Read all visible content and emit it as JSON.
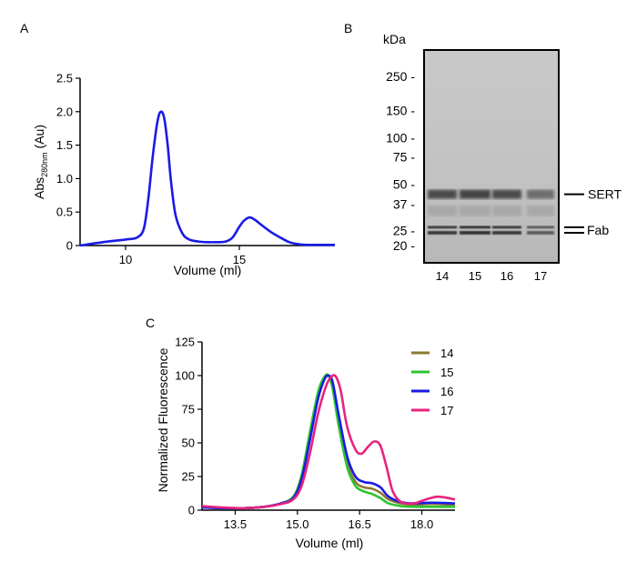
{
  "panel_labels": {
    "a": "A",
    "b": "B",
    "c": "C"
  },
  "chart_data": [
    {
      "id": "A",
      "type": "line",
      "title": "",
      "xlabel": "Volume (ml)",
      "ylabel_main": "Abs",
      "ylabel_sub": "280nm",
      "ylabel_unit": " (Au)",
      "xlim": [
        8,
        19.2
      ],
      "ylim": [
        0,
        2.5
      ],
      "xticks": [
        10,
        15
      ],
      "yticks": [
        0,
        0.5,
        1.0,
        1.5,
        2.0,
        2.5
      ],
      "ytick_labels": [
        "0",
        "0.5",
        "1.0",
        "1.5",
        "2.0",
        "2.5"
      ],
      "grid": false,
      "series": [
        {
          "name": "Abs280",
          "color": "#1a1ae6",
          "x": [
            8,
            9,
            10,
            10.5,
            10.8,
            11.0,
            11.2,
            11.4,
            11.55,
            11.7,
            11.85,
            12.0,
            12.2,
            12.5,
            12.8,
            13.2,
            13.6,
            14.0,
            14.4,
            14.7,
            15.0,
            15.2,
            15.45,
            15.7,
            16.0,
            16.4,
            16.8,
            17.2,
            17.6,
            18.0,
            19.2
          ],
          "values": [
            0.0,
            0.05,
            0.09,
            0.12,
            0.25,
            0.7,
            1.35,
            1.85,
            2.0,
            1.9,
            1.5,
            0.95,
            0.45,
            0.18,
            0.09,
            0.06,
            0.05,
            0.05,
            0.06,
            0.12,
            0.28,
            0.37,
            0.42,
            0.38,
            0.3,
            0.2,
            0.12,
            0.05,
            0.02,
            0.01,
            0.01
          ]
        }
      ]
    },
    {
      "id": "B",
      "type": "gel",
      "unit_label": "kDa",
      "markers": [
        {
          "label": "250",
          "kda": 250
        },
        {
          "label": "150",
          "kda": 150
        },
        {
          "label": "100",
          "kda": 100
        },
        {
          "label": "75",
          "kda": 75
        },
        {
          "label": "50",
          "kda": 50
        },
        {
          "label": "37",
          "kda": 37
        },
        {
          "label": "25",
          "kda": 25
        },
        {
          "label": "20",
          "kda": 20
        }
      ],
      "lanes": [
        "14",
        "15",
        "16",
        "17"
      ],
      "band_annotations": [
        {
          "label": "SERT",
          "kda": 43
        },
        {
          "label": "Fab",
          "kda": 25.5
        }
      ]
    },
    {
      "id": "C",
      "type": "line",
      "title": "",
      "xlabel": "Volume (ml)",
      "ylabel": "Normalized Fluorescence",
      "xlim": [
        12.7,
        18.8
      ],
      "ylim": [
        0,
        125
      ],
      "xticks": [
        13.5,
        15.0,
        16.5,
        18.0
      ],
      "xtick_labels": [
        "13.5",
        "15.0",
        "16.5",
        "18.0"
      ],
      "yticks": [
        0,
        25,
        50,
        75,
        100,
        125
      ],
      "grid": false,
      "legend_position": "top-right",
      "series": [
        {
          "name": "14",
          "color": "#8c7a33",
          "x": [
            12.7,
            13.2,
            13.7,
            14.2,
            14.6,
            14.9,
            15.1,
            15.3,
            15.5,
            15.65,
            15.75,
            15.85,
            16.0,
            16.2,
            16.4,
            16.6,
            16.8,
            17.0,
            17.2,
            17.5,
            17.8,
            18.1,
            18.4,
            18.8
          ],
          "values": [
            2,
            1.5,
            1.5,
            2.5,
            5,
            10,
            25,
            55,
            85,
            98,
            100,
            92,
            65,
            35,
            21,
            17,
            16,
            13,
            8,
            5,
            4,
            4.5,
            4.5,
            4
          ]
        },
        {
          "name": "15",
          "color": "#2ec42e",
          "x": [
            12.7,
            13.2,
            13.7,
            14.2,
            14.6,
            14.9,
            15.1,
            15.3,
            15.5,
            15.65,
            15.75,
            15.85,
            16.0,
            16.2,
            16.4,
            16.6,
            16.8,
            17.0,
            17.2,
            17.5,
            17.8,
            18.1,
            18.4,
            18.8
          ],
          "values": [
            2,
            1.5,
            1.5,
            2.5,
            5,
            10,
            26,
            58,
            88,
            99,
            100,
            90,
            62,
            32,
            18,
            14,
            12,
            9,
            5,
            3,
            2.5,
            2.5,
            2.5,
            2.5
          ]
        },
        {
          "name": "16",
          "color": "#1a1ae6",
          "x": [
            12.7,
            13.2,
            13.7,
            14.2,
            14.6,
            14.9,
            15.1,
            15.3,
            15.5,
            15.65,
            15.75,
            15.85,
            16.0,
            16.2,
            16.4,
            16.6,
            16.8,
            17.0,
            17.2,
            17.5,
            17.8,
            18.1,
            18.4,
            18.8
          ],
          "values": [
            2,
            1.5,
            1.5,
            2.5,
            5,
            9,
            23,
            52,
            83,
            97,
            100,
            95,
            70,
            40,
            25,
            21,
            20,
            17,
            10,
            6,
            5,
            5.5,
            5.5,
            5
          ]
        },
        {
          "name": "17",
          "color": "#e8237e",
          "x": [
            12.7,
            13.2,
            13.7,
            14.2,
            14.6,
            14.9,
            15.1,
            15.3,
            15.5,
            15.7,
            15.85,
            15.95,
            16.05,
            16.2,
            16.4,
            16.55,
            16.7,
            16.85,
            17.0,
            17.15,
            17.3,
            17.5,
            17.8,
            18.1,
            18.4,
            18.8
          ],
          "values": [
            3,
            2,
            1.5,
            2.5,
            4.5,
            8,
            18,
            42,
            72,
            93,
            100,
            98,
            88,
            62,
            45,
            42,
            47,
            51,
            48,
            32,
            14,
            6,
            5,
            8,
            10,
            8
          ]
        }
      ]
    }
  ]
}
